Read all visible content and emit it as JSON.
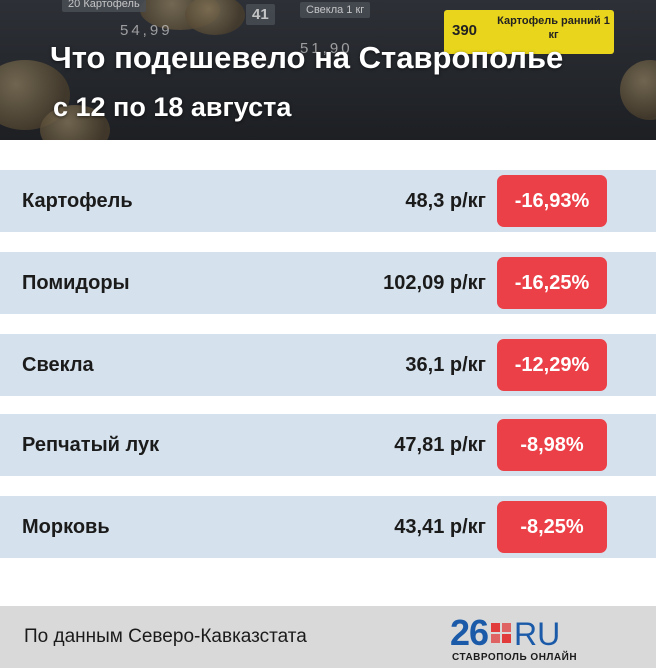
{
  "header": {
    "title": "Что подешевело на Ставрополье",
    "subtitle": "с 12 по 18 августа",
    "background_tags": {
      "tag1": "20",
      "tag2": "Картофель",
      "tag3": "41",
      "tag4": "Свекла 1 кг",
      "price1": "54,99",
      "price2": "51,90",
      "yellow_num": "390",
      "yellow_text": "Картофель ранний 1 кг"
    }
  },
  "rows": [
    {
      "name": "Картофель",
      "price": "48,3 р/кг",
      "change": "-16,93%"
    },
    {
      "name": "Помидоры",
      "price": "102,09 р/кг",
      "change": "-16,25%"
    },
    {
      "name": "Свекла",
      "price": "36,1 р/кг",
      "change": "-12,29%"
    },
    {
      "name": "Репчатый лук",
      "price": "47,81 р/кг",
      "change": "-8,98%"
    },
    {
      "name": "Морковь",
      "price": "43,41 р/кг",
      "change": "-8,25%"
    }
  ],
  "footer": {
    "source": "По данным Северо-Кавказстата",
    "logo_number": "26",
    "logo_ru": "RU",
    "logo_subtitle": "СТАВРОПОЛЬ ОНЛАЙН"
  },
  "colors": {
    "row_background": "#d5e1ec",
    "change_badge": "#eb4048",
    "logo_blue": "#1a5aa8",
    "logo_red": "#e23b3b"
  }
}
